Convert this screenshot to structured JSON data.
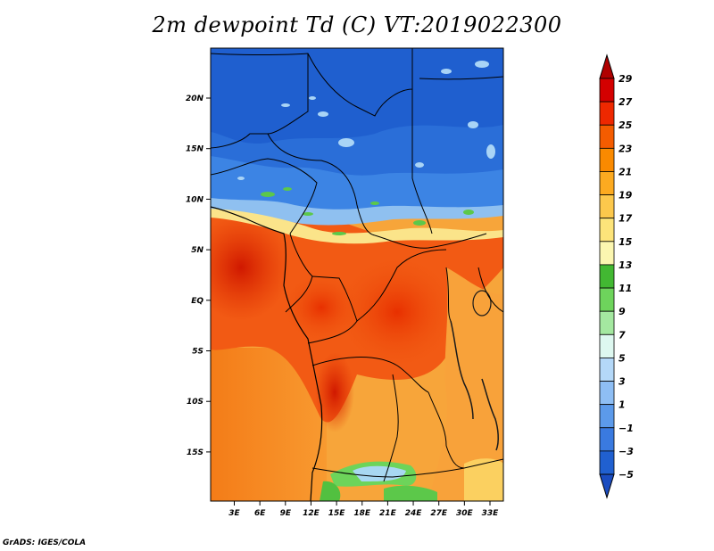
{
  "title": "2m dewpoint Td (C) VT:2019022300",
  "credit": "GrADS: IGES/COLA",
  "map": {
    "lon_range": [
      0,
      35
    ],
    "lat_range": [
      -20,
      25
    ],
    "x_ticks": [
      "3E",
      "6E",
      "9E",
      "12E",
      "15E",
      "18E",
      "21E",
      "24E",
      "27E",
      "30E",
      "33E"
    ],
    "y_ticks": [
      "20N",
      "15N",
      "10N",
      "5N",
      "EQ",
      "5S",
      "10S",
      "15S"
    ]
  },
  "colorbar": {
    "labels": [
      "29",
      "27",
      "25",
      "23",
      "21",
      "19",
      "17",
      "15",
      "13",
      "11",
      "9",
      "7",
      "5",
      "3",
      "1",
      "−1",
      "−3",
      "−5"
    ],
    "colors": [
      "#b00000",
      "#d40000",
      "#ee2800",
      "#f45c00",
      "#fa8a00",
      "#fcaa20",
      "#fcc84c",
      "#fde47a",
      "#fbf6b0",
      "#42b832",
      "#6ed45c",
      "#a4e8a0",
      "#def8f0",
      "#b4d8f8",
      "#8ebef4",
      "#5c9aea",
      "#3a7ae0",
      "#2060d0",
      "#1a4cc0"
    ]
  }
}
